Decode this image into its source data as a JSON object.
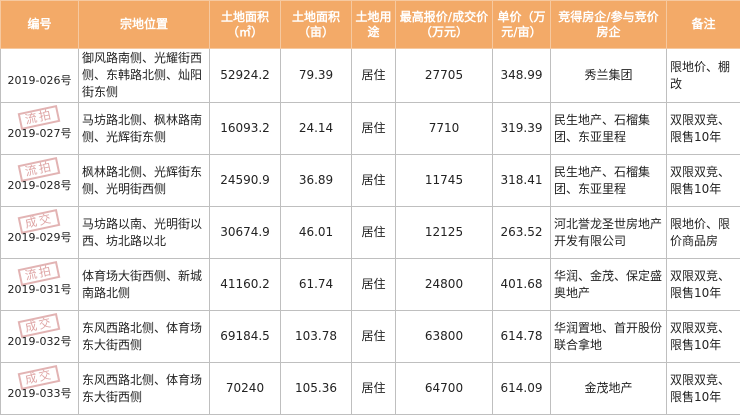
{
  "headers": [
    "编号",
    "宗地位置",
    "土地面积（㎡）",
    "土地面积（亩）",
    "土地用途",
    "最高报价/成交价（万元）",
    "单价（万元/亩）",
    "竞得房企/参与竞价房企",
    "备注"
  ],
  "rows": [
    {
      "id": "2019-026号",
      "stamp": "",
      "location": "御风路南侧、光耀街西侧、东韩路北侧、灿阳街东侧",
      "area_m2": "52924.2",
      "area_mu": "79.39",
      "use": "居住",
      "price": "27705",
      "unit_price": "348.99",
      "company": "秀兰集团",
      "note": "限地价、棚改"
    },
    {
      "id": "2019-027号",
      "stamp": "流拍",
      "location": "马坊路北侧、枫林路南侧、光辉街东侧",
      "area_m2": "16093.2",
      "area_mu": "24.14",
      "use": "居住",
      "price": "7710",
      "unit_price": "319.39",
      "company": "民生地产、石榴集团、东亚里程",
      "note": "双限双竞、限售10年"
    },
    {
      "id": "2019-028号",
      "stamp": "流拍",
      "location": "枫林路北侧、光辉街东侧、光明街西侧",
      "area_m2": "24590.9",
      "area_mu": "36.89",
      "use": "居住",
      "price": "11745",
      "unit_price": "318.41",
      "company": "民生地产、石榴集团、东亚里程",
      "note": "双限双竞、限售10年"
    },
    {
      "id": "2019-029号",
      "stamp": "成交",
      "location": "马坊路以南、光明街以西、坊北路以北",
      "area_m2": "30674.9",
      "area_mu": "46.01",
      "use": "居住",
      "price": "12125",
      "unit_price": "263.52",
      "company": "河北誉龙圣世房地产开发有限公司",
      "note": "限地价、限价商品房"
    },
    {
      "id": "2019-031号",
      "stamp": "流拍",
      "location": "体育场大街西侧、新城南路北侧",
      "area_m2": "41160.2",
      "area_mu": "61.74",
      "use": "居住",
      "price": "24800",
      "unit_price": "401.68",
      "company": "华润、金茂、保定盛奥地产",
      "note": "双限双竞、限售10年"
    },
    {
      "id": "2019-032号",
      "stamp": "成交",
      "location": "东风西路北侧、体育场东大街西侧",
      "area_m2": "69184.5",
      "area_mu": "103.78",
      "use": "居住",
      "price": "63800",
      "unit_price": "614.78",
      "company": "华润置地、首开股份联合拿地",
      "note": "双限双竞、限售10年"
    },
    {
      "id": "2019-033号",
      "stamp": "成交",
      "location": "东风西路北侧、体育场东大街西侧",
      "area_m2": "70240",
      "area_mu": "105.36",
      "use": "居住",
      "price": "64700",
      "unit_price": "614.09",
      "company": "金茂地产",
      "note": "双限双竞、限售10年"
    }
  ]
}
